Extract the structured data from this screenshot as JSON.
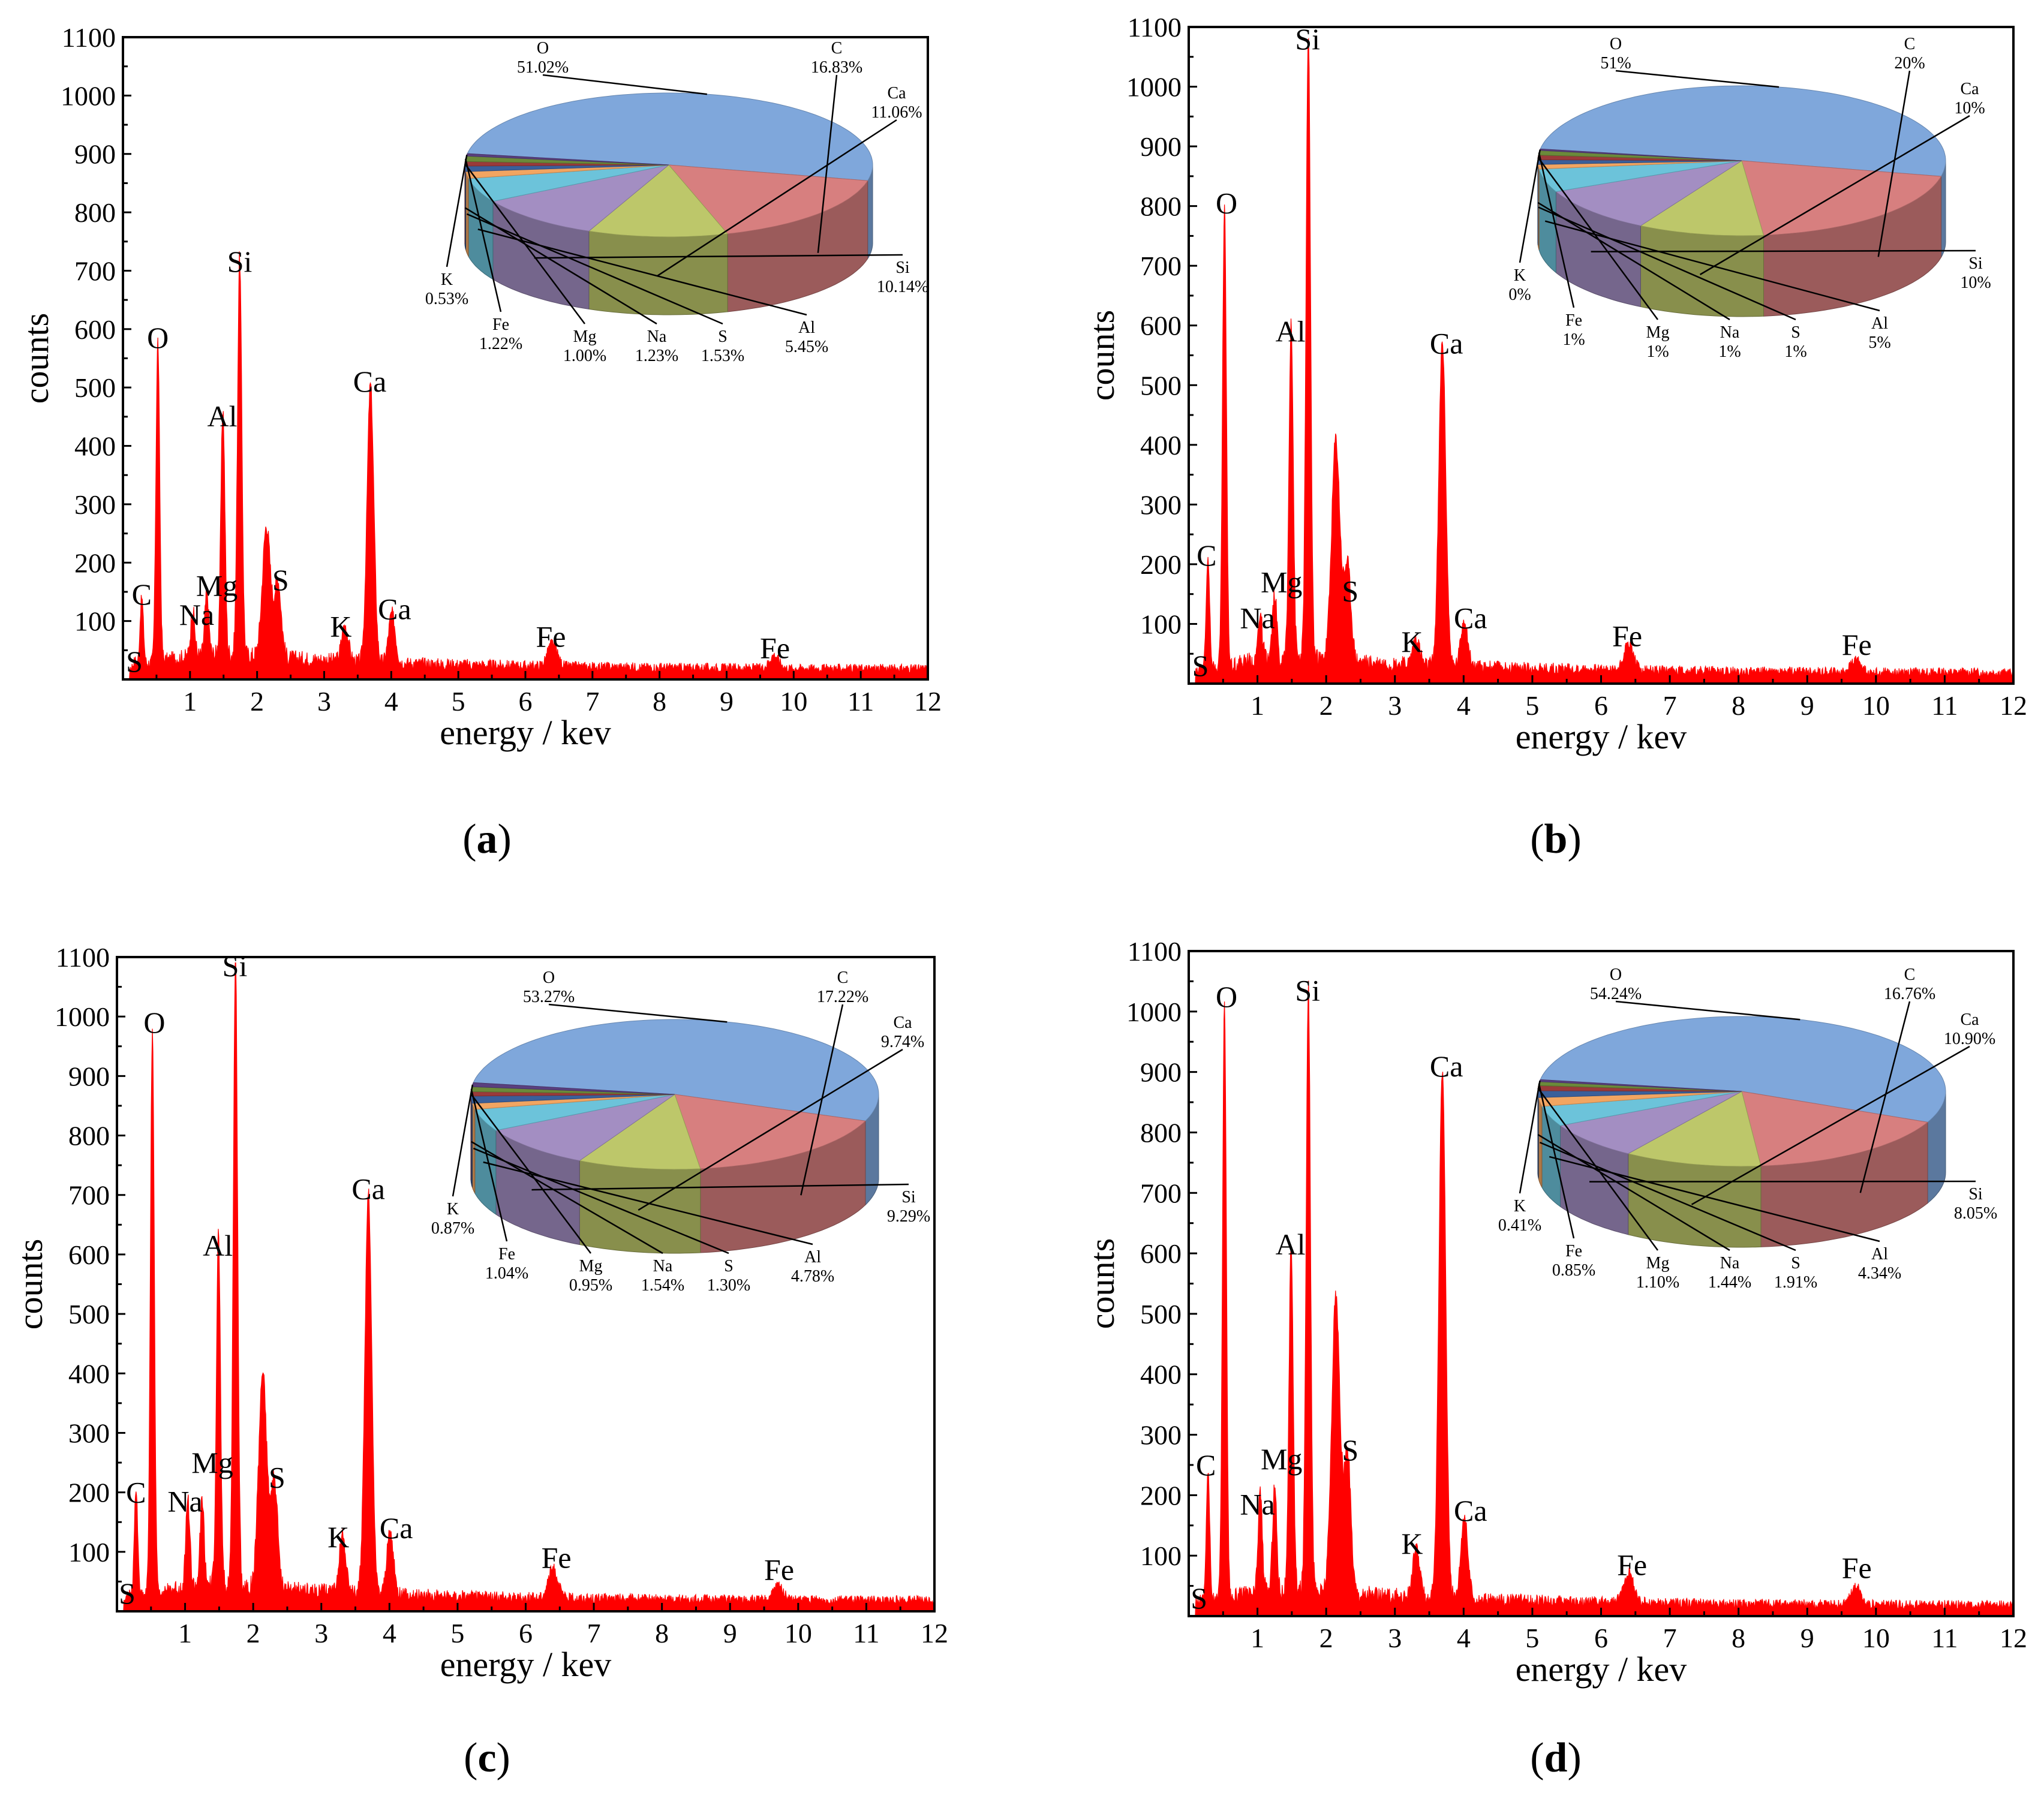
{
  "colors": {
    "spectrum": "#ff0000",
    "pie": {
      "O": "#7fa7db",
      "C": "#d77f7f",
      "Ca": "#bdc76a",
      "Si": "#a38ec2",
      "Al": "#6cc3da",
      "S": "#f2a561",
      "Na": "#3a5f9a",
      "Mg": "#9a3a3a",
      "Fe": "#6b8a3a",
      "K": "#5a3f7f"
    }
  },
  "chart_data": [
    {
      "id": "a",
      "type": "line",
      "panel_label": "a",
      "xlabel": "energy / kev",
      "ylabel": "counts",
      "xlim": [
        0,
        12
      ],
      "ylim": [
        0,
        1100
      ],
      "xticks": [
        1,
        2,
        3,
        4,
        5,
        6,
        7,
        8,
        9,
        10,
        11,
        12
      ],
      "yticks": [
        100,
        200,
        300,
        400,
        500,
        600,
        700,
        800,
        900,
        1000,
        1100
      ],
      "peaks": [
        {
          "label": "S",
          "x": 0.18,
          "y": 10,
          "sigma": 0.02
        },
        {
          "label": "C",
          "x": 0.28,
          "y": 115,
          "sigma": 0.025
        },
        {
          "label": "O",
          "x": 0.52,
          "y": 550,
          "sigma": 0.028
        },
        {
          "label": "Na",
          "x": 1.04,
          "y": 80,
          "sigma": 0.03
        },
        {
          "label": "Mg",
          "x": 1.25,
          "y": 105,
          "sigma": 0.03
        },
        {
          "label": "Al",
          "x": 1.49,
          "y": 420,
          "sigma": 0.03
        },
        {
          "label": "Si",
          "x": 1.74,
          "y": 680,
          "sigma": 0.032
        },
        {
          "label": "",
          "x": 2.14,
          "y": 225,
          "sigma": 0.06
        },
        {
          "label": "S",
          "x": 2.31,
          "y": 130,
          "sigma": 0.05
        },
        {
          "label": "K",
          "x": 3.31,
          "y": 60,
          "sigma": 0.05
        },
        {
          "label": "Ca",
          "x": 3.69,
          "y": 475,
          "sigma": 0.05
        },
        {
          "label": "Ca",
          "x": 4.01,
          "y": 85,
          "sigma": 0.05
        },
        {
          "label": "Fe",
          "x": 6.4,
          "y": 40,
          "sigma": 0.07
        },
        {
          "label": "Fe",
          "x": 9.71,
          "y": 22,
          "sigma": 0.07
        }
      ],
      "peak_labels": [
        {
          "text": "S",
          "x": 0.17,
          "y": 5
        },
        {
          "text": "C",
          "x": 0.28,
          "y": 120
        },
        {
          "text": "O",
          "x": 0.52,
          "y": 560
        },
        {
          "text": "Na",
          "x": 1.1,
          "y": 85
        },
        {
          "text": "Mg",
          "x": 1.4,
          "y": 135
        },
        {
          "text": "Al",
          "x": 1.48,
          "y": 425
        },
        {
          "text": "Si",
          "x": 1.74,
          "y": 690
        },
        {
          "text": "S",
          "x": 2.35,
          "y": 145
        },
        {
          "text": "K",
          "x": 3.25,
          "y": 65
        },
        {
          "text": "Ca",
          "x": 3.68,
          "y": 485
        },
        {
          "text": "Ca",
          "x": 4.05,
          "y": 95
        },
        {
          "text": "Fe",
          "x": 6.38,
          "y": 48
        },
        {
          "text": "Fe",
          "x": 9.72,
          "y": 28
        }
      ],
      "pie": {
        "slices": [
          {
            "el": "O",
            "value": 51.02,
            "label": "51.02%"
          },
          {
            "el": "C",
            "value": 16.83,
            "label": "16.83%"
          },
          {
            "el": "Ca",
            "value": 11.06,
            "label": "11.06%"
          },
          {
            "el": "Si",
            "value": 10.14,
            "label": "10.14%"
          },
          {
            "el": "Al",
            "value": 5.45,
            "label": "5.45%"
          },
          {
            "el": "S",
            "value": 1.53,
            "label": "1.53%"
          },
          {
            "el": "Na",
            "value": 1.23,
            "label": "1.23%"
          },
          {
            "el": "Mg",
            "value": 1.0,
            "label": "1.00%"
          },
          {
            "el": "Fe",
            "value": 1.22,
            "label": "1.22%"
          },
          {
            "el": "K",
            "value": 0.53,
            "label": "0.53%"
          }
        ]
      }
    },
    {
      "id": "b",
      "type": "line",
      "panel_label": "b",
      "xlabel": "energy / kev",
      "ylabel": "counts",
      "xlim": [
        0,
        12
      ],
      "ylim": [
        0,
        1100
      ],
      "xticks": [
        1,
        2,
        3,
        4,
        5,
        6,
        7,
        8,
        9,
        10,
        11,
        12
      ],
      "yticks": [
        100,
        200,
        300,
        400,
        500,
        600,
        700,
        800,
        900,
        1000,
        1100
      ],
      "peaks": [
        {
          "label": "S",
          "x": 0.18,
          "y": 10,
          "sigma": 0.02
        },
        {
          "label": "C",
          "x": 0.28,
          "y": 190,
          "sigma": 0.025
        },
        {
          "label": "O",
          "x": 0.52,
          "y": 770,
          "sigma": 0.028
        },
        {
          "label": "Na",
          "x": 1.04,
          "y": 80,
          "sigma": 0.03
        },
        {
          "label": "Mg",
          "x": 1.25,
          "y": 110,
          "sigma": 0.03
        },
        {
          "label": "Al",
          "x": 1.49,
          "y": 570,
          "sigma": 0.03
        },
        {
          "label": "Si",
          "x": 1.74,
          "y": 1050,
          "sigma": 0.032
        },
        {
          "label": "",
          "x": 2.14,
          "y": 370,
          "sigma": 0.06
        },
        {
          "label": "S",
          "x": 2.31,
          "y": 160,
          "sigma": 0.05
        },
        {
          "label": "K",
          "x": 3.31,
          "y": 45,
          "sigma": 0.05
        },
        {
          "label": "Ca",
          "x": 3.69,
          "y": 545,
          "sigma": 0.05
        },
        {
          "label": "Ca",
          "x": 4.01,
          "y": 80,
          "sigma": 0.05
        },
        {
          "label": "Fe",
          "x": 6.4,
          "y": 45,
          "sigma": 0.07
        },
        {
          "label": "Fe",
          "x": 9.71,
          "y": 22,
          "sigma": 0.07
        }
      ],
      "peak_labels": [
        {
          "text": "S",
          "x": 0.17,
          "y": 5
        },
        {
          "text": "C",
          "x": 0.26,
          "y": 190
        },
        {
          "text": "O",
          "x": 0.55,
          "y": 780
        },
        {
          "text": "Na",
          "x": 1.0,
          "y": 85
        },
        {
          "text": "Mg",
          "x": 1.35,
          "y": 145
        },
        {
          "text": "Al",
          "x": 1.48,
          "y": 565
        },
        {
          "text": "Si",
          "x": 1.73,
          "y": 1055
        },
        {
          "text": "S",
          "x": 2.35,
          "y": 130
        },
        {
          "text": "K",
          "x": 3.25,
          "y": 45
        },
        {
          "text": "Ca",
          "x": 3.75,
          "y": 545
        },
        {
          "text": "Ca",
          "x": 4.1,
          "y": 85
        },
        {
          "text": "Fe",
          "x": 6.38,
          "y": 55
        },
        {
          "text": "Fe",
          "x": 9.72,
          "y": 40
        }
      ],
      "pie": {
        "slices": [
          {
            "el": "O",
            "value": 51,
            "label": "51%"
          },
          {
            "el": "C",
            "value": 20,
            "label": "20%"
          },
          {
            "el": "Ca",
            "value": 10,
            "label": "10%"
          },
          {
            "el": "Si",
            "value": 10,
            "label": "10%"
          },
          {
            "el": "Al",
            "value": 5,
            "label": "5%"
          },
          {
            "el": "S",
            "value": 1,
            "label": "1%"
          },
          {
            "el": "Na",
            "value": 1,
            "label": "1%"
          },
          {
            "el": "Mg",
            "value": 1,
            "label": "1%"
          },
          {
            "el": "Fe",
            "value": 1,
            "label": "1%"
          },
          {
            "el": "K",
            "value": 0,
            "label": "0%"
          }
        ]
      }
    },
    {
      "id": "c",
      "type": "line",
      "panel_label": "c",
      "xlabel": "energy / kev",
      "ylabel": "counts",
      "xlim": [
        0,
        12
      ],
      "ylim": [
        0,
        1100
      ],
      "xticks": [
        1,
        2,
        3,
        4,
        5,
        6,
        7,
        8,
        9,
        10,
        11,
        12
      ],
      "yticks": [
        100,
        200,
        300,
        400,
        500,
        600,
        700,
        800,
        900,
        1000,
        1100
      ],
      "peaks": [
        {
          "label": "S",
          "x": 0.18,
          "y": 10,
          "sigma": 0.02
        },
        {
          "label": "C",
          "x": 0.28,
          "y": 180,
          "sigma": 0.025
        },
        {
          "label": "O",
          "x": 0.52,
          "y": 950,
          "sigma": 0.028
        },
        {
          "label": "Na",
          "x": 1.04,
          "y": 150,
          "sigma": 0.03
        },
        {
          "label": "Mg",
          "x": 1.25,
          "y": 145,
          "sigma": 0.03
        },
        {
          "label": "Al",
          "x": 1.49,
          "y": 590,
          "sigma": 0.03
        },
        {
          "label": "Si",
          "x": 1.74,
          "y": 1050,
          "sigma": 0.032
        },
        {
          "label": "",
          "x": 2.14,
          "y": 365,
          "sigma": 0.06
        },
        {
          "label": "S",
          "x": 2.31,
          "y": 180,
          "sigma": 0.05
        },
        {
          "label": "K",
          "x": 3.31,
          "y": 95,
          "sigma": 0.05
        },
        {
          "label": "Ca",
          "x": 3.69,
          "y": 675,
          "sigma": 0.05
        },
        {
          "label": "Ca",
          "x": 4.01,
          "y": 105,
          "sigma": 0.05
        },
        {
          "label": "Fe",
          "x": 6.4,
          "y": 50,
          "sigma": 0.07
        },
        {
          "label": "Fe",
          "x": 9.71,
          "y": 25,
          "sigma": 0.07
        }
      ],
      "peak_labels": [
        {
          "text": "S",
          "x": 0.15,
          "y": 5
        },
        {
          "text": "C",
          "x": 0.28,
          "y": 175
        },
        {
          "text": "O",
          "x": 0.55,
          "y": 965
        },
        {
          "text": "Na",
          "x": 1.0,
          "y": 160
        },
        {
          "text": "Mg",
          "x": 1.4,
          "y": 225
        },
        {
          "text": "Al",
          "x": 1.48,
          "y": 590
        },
        {
          "text": "Si",
          "x": 1.73,
          "y": 1060
        },
        {
          "text": "S",
          "x": 2.35,
          "y": 200
        },
        {
          "text": "K",
          "x": 3.25,
          "y": 100
        },
        {
          "text": "Ca",
          "x": 3.69,
          "y": 685
        },
        {
          "text": "Ca",
          "x": 4.1,
          "y": 115
        },
        {
          "text": "Fe",
          "x": 6.45,
          "y": 65
        },
        {
          "text": "Fe",
          "x": 9.72,
          "y": 45
        }
      ],
      "pie": {
        "slices": [
          {
            "el": "O",
            "value": 53.27,
            "label": "53.27%"
          },
          {
            "el": "C",
            "value": 17.22,
            "label": "17.22%"
          },
          {
            "el": "Ca",
            "value": 9.74,
            "label": "9.74%"
          },
          {
            "el": "Si",
            "value": 9.29,
            "label": "9.29%"
          },
          {
            "el": "Al",
            "value": 4.78,
            "label": "4.78%"
          },
          {
            "el": "S",
            "value": 1.3,
            "label": "1.30%"
          },
          {
            "el": "Na",
            "value": 1.54,
            "label": "1.54%"
          },
          {
            "el": "Mg",
            "value": 0.95,
            "label": "0.95%"
          },
          {
            "el": "Fe",
            "value": 1.04,
            "label": "1.04%"
          },
          {
            "el": "K",
            "value": 0.87,
            "label": "0.87%"
          }
        ]
      }
    },
    {
      "id": "d",
      "type": "line",
      "panel_label": "d",
      "xlabel": "energy / kev",
      "ylabel": "counts",
      "xlim": [
        0,
        12
      ],
      "ylim": [
        0,
        1100
      ],
      "xticks": [
        1,
        2,
        3,
        4,
        5,
        6,
        7,
        8,
        9,
        10,
        11,
        12
      ],
      "yticks": [
        100,
        200,
        300,
        400,
        500,
        600,
        700,
        800,
        900,
        1000,
        1100
      ],
      "peaks": [
        {
          "label": "S",
          "x": 0.18,
          "y": 10,
          "sigma": 0.02
        },
        {
          "label": "C",
          "x": 0.28,
          "y": 215,
          "sigma": 0.025
        },
        {
          "label": "O",
          "x": 0.52,
          "y": 990,
          "sigma": 0.028
        },
        {
          "label": "Na",
          "x": 1.04,
          "y": 170,
          "sigma": 0.03
        },
        {
          "label": "Mg",
          "x": 1.25,
          "y": 175,
          "sigma": 0.03
        },
        {
          "label": "Al",
          "x": 1.49,
          "y": 580,
          "sigma": 0.03
        },
        {
          "label": "Si",
          "x": 1.74,
          "y": 1000,
          "sigma": 0.032
        },
        {
          "label": "",
          "x": 2.14,
          "y": 490,
          "sigma": 0.06
        },
        {
          "label": "S",
          "x": 2.31,
          "y": 230,
          "sigma": 0.05
        },
        {
          "label": "K",
          "x": 3.31,
          "y": 80,
          "sigma": 0.05
        },
        {
          "label": "Ca",
          "x": 3.69,
          "y": 875,
          "sigma": 0.05
        },
        {
          "label": "Ca",
          "x": 4.01,
          "y": 140,
          "sigma": 0.05
        },
        {
          "label": "Fe",
          "x": 6.4,
          "y": 50,
          "sigma": 0.07
        },
        {
          "label": "Fe",
          "x": 9.71,
          "y": 30,
          "sigma": 0.07
        }
      ],
      "peak_labels": [
        {
          "text": "S",
          "x": 0.15,
          "y": 5
        },
        {
          "text": "C",
          "x": 0.25,
          "y": 225
        },
        {
          "text": "O",
          "x": 0.55,
          "y": 1000
        },
        {
          "text": "Na",
          "x": 1.0,
          "y": 160
        },
        {
          "text": "Mg",
          "x": 1.35,
          "y": 235
        },
        {
          "text": "Al",
          "x": 1.48,
          "y": 590
        },
        {
          "text": "Si",
          "x": 1.73,
          "y": 1010
        },
        {
          "text": "S",
          "x": 2.35,
          "y": 250
        },
        {
          "text": "K",
          "x": 3.25,
          "y": 95
        },
        {
          "text": "Ca",
          "x": 3.75,
          "y": 885
        },
        {
          "text": "Ca",
          "x": 4.1,
          "y": 150
        },
        {
          "text": "Fe",
          "x": 6.45,
          "y": 60
        },
        {
          "text": "Fe",
          "x": 9.72,
          "y": 55
        }
      ],
      "pie": {
        "slices": [
          {
            "el": "O",
            "value": 54.24,
            "label": "54.24%"
          },
          {
            "el": "C",
            "value": 16.76,
            "label": "16.76%"
          },
          {
            "el": "Ca",
            "value": 10.9,
            "label": "10.90%"
          },
          {
            "el": "Si",
            "value": 8.05,
            "label": "8.05%"
          },
          {
            "el": "Al",
            "value": 4.34,
            "label": "4.34%"
          },
          {
            "el": "S",
            "value": 1.91,
            "label": "1.91%"
          },
          {
            "el": "Na",
            "value": 1.44,
            "label": "1.44%"
          },
          {
            "el": "Mg",
            "value": 1.1,
            "label": "1.10%"
          },
          {
            "el": "Fe",
            "value": 0.85,
            "label": "0.85%"
          },
          {
            "el": "K",
            "value": 0.41,
            "label": "0.41%"
          }
        ]
      }
    }
  ]
}
